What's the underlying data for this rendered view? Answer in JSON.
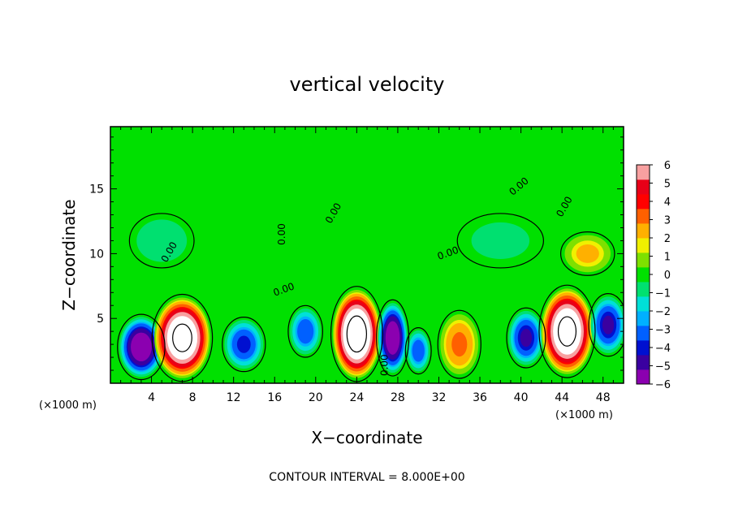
{
  "chart_data": {
    "type": "heatmap",
    "title": "vertical velocity",
    "xlabel": "X−coordinate",
    "ylabel": "Z−coordinate",
    "x_unit": "(×1000 m)",
    "z_unit": "(×1000 m)",
    "xlim": [
      0,
      50
    ],
    "ylim": [
      0,
      19.8
    ],
    "x_ticks": [
      4,
      8,
      12,
      16,
      20,
      24,
      28,
      32,
      36,
      40,
      44,
      48
    ],
    "y_ticks": [
      5,
      10,
      15
    ],
    "colorbar": {
      "range": [
        -6,
        6
      ],
      "ticks": [
        "6",
        "5",
        "4",
        "3",
        "2",
        "1",
        "0",
        "−1",
        "−2",
        "−3",
        "−4",
        "−5",
        "−6"
      ],
      "colors": [
        "#8b00b0",
        "#3a00a0",
        "#0010d0",
        "#0060ff",
        "#00b0ff",
        "#00e0d8",
        "#00e070",
        "#00e000",
        "#7ee000",
        "#f0f000",
        "#ffb000",
        "#ff6000",
        "#ff0000",
        "#e80018",
        "#f8a0a0"
      ]
    },
    "cells": [
      {
        "x": 3,
        "z": 2.8,
        "w": -7.0,
        "rx": 2.2,
        "rz": 2.4
      },
      {
        "x": 7,
        "z": 3.5,
        "w": 9.0,
        "rx": 2.8,
        "rz": 3.2
      },
      {
        "x": 13,
        "z": 3.0,
        "w": -4.5,
        "rx": 2.0,
        "rz": 2.0
      },
      {
        "x": 19,
        "z": 4.0,
        "w": -4.0,
        "rx": 1.6,
        "rz": 1.9
      },
      {
        "x": 24,
        "z": 3.8,
        "w": 9.5,
        "rx": 2.4,
        "rz": 3.5
      },
      {
        "x": 27.5,
        "z": 3.5,
        "w": -7.0,
        "rx": 1.5,
        "rz": 2.8
      },
      {
        "x": 30,
        "z": 2.5,
        "w": -4.0,
        "rx": 1.2,
        "rz": 1.7
      },
      {
        "x": 34,
        "z": 3.0,
        "w": 3.5,
        "rx": 2.0,
        "rz": 2.5
      },
      {
        "x": 40.5,
        "z": 3.5,
        "w": -5.0,
        "rx": 1.8,
        "rz": 2.2
      },
      {
        "x": 44.5,
        "z": 4.0,
        "w": 9.0,
        "rx": 2.6,
        "rz": 3.4
      },
      {
        "x": 48.5,
        "z": 4.5,
        "w": -5.0,
        "rx": 1.8,
        "rz": 2.3
      },
      {
        "x": 46.5,
        "z": 10.0,
        "w": 2.5,
        "rx": 2.5,
        "rz": 1.6
      },
      {
        "x": 5,
        "z": 11.0,
        "w": -1.5,
        "rx": 3.0,
        "rz": 2.0
      },
      {
        "x": 38,
        "z": 11.0,
        "w": -1.0,
        "rx": 4.0,
        "rz": 2.0
      }
    ],
    "contour_labels": [
      "0.00",
      "0.00",
      "0.00",
      "0.00",
      "0.00",
      "0.00",
      "0.00",
      "0.00"
    ]
  },
  "annotation": "CONTOUR INTERVAL = 8.000E+00"
}
